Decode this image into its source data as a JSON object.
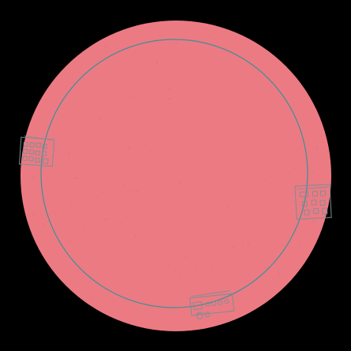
{
  "scene": {
    "background_color": "#000000",
    "disc_color": "#ec7a82",
    "ring_color": "#3d8f9a",
    "sketch_color": "#7a8f98",
    "icons": {
      "disc": "circle-disc",
      "ring": "circle-outline",
      "left_sketch": "building-sketch-icon",
      "right_sketch": "building-sketch-icon",
      "bottom_sketch": "vehicle-sketch-icon"
    }
  }
}
